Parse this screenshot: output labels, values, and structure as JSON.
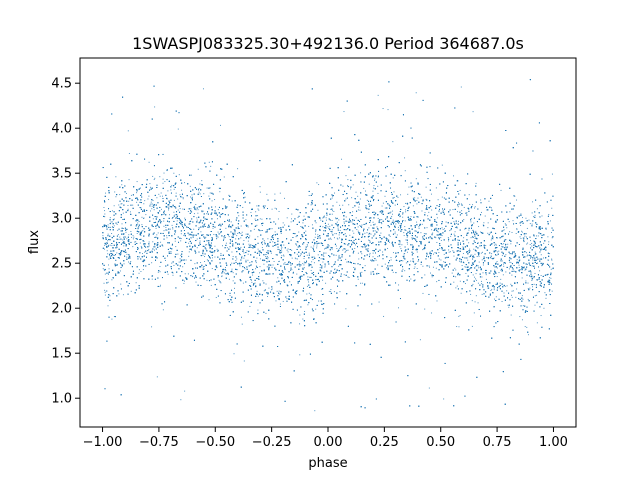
{
  "chart_data": {
    "type": "scatter",
    "title": "1SWASPJ083325.30+492136.0 Period 364687.0s",
    "xlabel": "phase",
    "ylabel": "flux",
    "xlim": [
      -1.1,
      1.1
    ],
    "ylim": [
      0.68,
      4.78
    ],
    "x_ticks": [
      -1.0,
      -0.75,
      -0.5,
      -0.25,
      0.0,
      0.25,
      0.5,
      0.75,
      1.0
    ],
    "x_tick_labels": [
      "−1.00",
      "−0.75",
      "−0.50",
      "−0.25",
      "0.00",
      "0.25",
      "0.50",
      "0.75",
      "1.00"
    ],
    "y_ticks": [
      1.0,
      1.5,
      2.0,
      2.5,
      3.0,
      3.5,
      4.0,
      4.5
    ],
    "y_tick_labels": [
      "1.0",
      "1.5",
      "2.0",
      "2.5",
      "3.0",
      "3.5",
      "4.0",
      "4.5"
    ],
    "grid": false,
    "marker_color": "#1f77b4",
    "series": [
      {
        "x_range": [
          -1.0,
          1.0
        ],
        "trend": {
          "x": [
            -1.0,
            -0.9,
            -0.8,
            -0.7,
            -0.6,
            -0.5,
            -0.4,
            -0.3,
            -0.25,
            -0.2,
            -0.1,
            0.0,
            0.05,
            0.1,
            0.2,
            0.3,
            0.4,
            0.5,
            0.6,
            0.7,
            0.8,
            0.9,
            1.0
          ],
          "y": [
            2.62,
            2.8,
            2.9,
            2.93,
            2.88,
            2.78,
            2.68,
            2.58,
            2.52,
            2.53,
            2.58,
            2.62,
            2.7,
            2.82,
            2.9,
            2.93,
            2.88,
            2.78,
            2.68,
            2.58,
            2.52,
            2.52,
            2.6
          ]
        },
        "spread": 0.32,
        "outlier_range": [
          0.85,
          4.55
        ]
      }
    ]
  }
}
